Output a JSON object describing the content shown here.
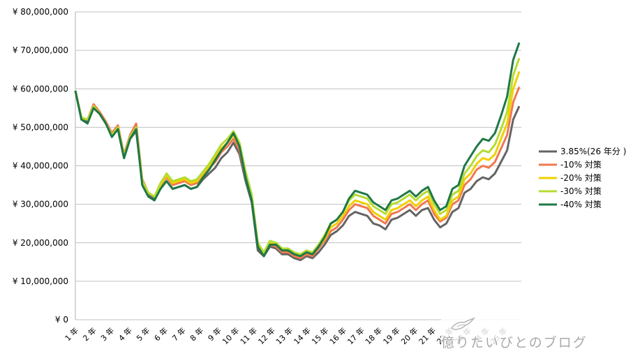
{
  "chart_data": {
    "type": "line",
    "title": "",
    "xlabel": "",
    "ylabel": "",
    "ylim": [
      0,
      80000000
    ],
    "y_ticks": [
      "¥ 0",
      "¥ 10,000,000",
      "¥ 20,000,000",
      "¥ 30,000,000",
      "¥ 40,000,000",
      "¥ 50,000,000",
      "¥ 60,000,000",
      "¥ 70,000,000",
      "¥ 80,000,000"
    ],
    "x_ticks": [
      "1 年",
      "2 年",
      "3 年",
      "4 年",
      "5 年",
      "6 年",
      "7 年",
      "8 年",
      "9 年",
      "10 年",
      "11 年",
      "12 年",
      "13 年",
      "14 年",
      "15 年",
      "16 年",
      "17 年",
      "18 年",
      "19 年",
      "20 年",
      "21 年",
      "22 年",
      "23 年",
      "24 年",
      "25 年"
    ],
    "grid": true,
    "legend_position": "right",
    "series": [
      {
        "name": "3.85%(26 年分 )",
        "color": "#646464",
        "values": [
          59.5,
          52,
          51.5,
          55,
          53.5,
          51,
          48,
          49.5,
          42,
          47,
          49,
          36,
          32.5,
          31.5,
          34.5,
          36,
          34,
          34.5,
          35,
          34,
          34.5,
          36.5,
          38,
          39.5,
          42,
          43.5,
          46,
          43,
          36,
          30.5,
          18,
          16.5,
          19,
          18.5,
          17,
          17,
          16,
          15.5,
          16.5,
          16,
          17.5,
          19.5,
          22,
          23,
          24.5,
          27,
          28,
          27.5,
          27,
          25,
          24.5,
          23.5,
          26,
          26.5,
          27.5,
          28.5,
          27,
          28.5,
          29,
          26,
          24,
          25,
          28,
          29,
          33,
          34,
          36,
          37,
          36.5,
          38,
          41,
          44,
          52,
          55.5
        ]
      },
      {
        "name": "-10% 対策",
        "color": "#f07850",
        "values": [
          59.5,
          52.5,
          52,
          56,
          54,
          51.5,
          48.5,
          50.5,
          43,
          48,
          51,
          36.5,
          33,
          32,
          35,
          37,
          35,
          35.5,
          36,
          35,
          35.5,
          37.5,
          39.5,
          41,
          43.5,
          45,
          47,
          44,
          37,
          31.5,
          19,
          17,
          19.5,
          19,
          17.5,
          17.5,
          16.5,
          16,
          17,
          16.5,
          18.5,
          20.5,
          23,
          24,
          26,
          28.5,
          30,
          29.5,
          29,
          27,
          26,
          25,
          27.5,
          28,
          29,
          30,
          28.5,
          30,
          31,
          27.5,
          25.5,
          26.5,
          30,
          31,
          35,
          36.5,
          39,
          40,
          39.5,
          41,
          44.5,
          48,
          56.5,
          60.5
        ]
      },
      {
        "name": "-20% 対策",
        "color": "#f0d000",
        "values": [
          59.5,
          52.5,
          52,
          55.5,
          53.5,
          51,
          48,
          50,
          42.5,
          47.5,
          50,
          36,
          33,
          32,
          35,
          37.5,
          35.5,
          36,
          36.5,
          35.5,
          36,
          38,
          40,
          42,
          44.5,
          46,
          48,
          45,
          38,
          32,
          19.5,
          17,
          20,
          19.5,
          18,
          18,
          17,
          16.5,
          17.5,
          17,
          19,
          21,
          24,
          25,
          27,
          29.5,
          31,
          30.5,
          30,
          28,
          27,
          26,
          28.5,
          29,
          30,
          31,
          29.5,
          31,
          32,
          28.5,
          26,
          27,
          31,
          32,
          36.5,
          38,
          40.5,
          42,
          41.5,
          43,
          47,
          51,
          60,
          64.5
        ]
      },
      {
        "name": "-30% 対策",
        "color": "#b4dc32",
        "values": [
          59.5,
          52.5,
          52,
          55.5,
          53.5,
          51,
          48,
          50,
          42.5,
          47.5,
          50,
          36,
          33,
          32,
          35.5,
          38,
          36,
          36.5,
          37,
          36,
          36.5,
          38.5,
          40.5,
          43,
          45.5,
          47,
          49,
          46,
          38.5,
          32.5,
          20,
          17.5,
          20.5,
          20,
          18.5,
          18.5,
          17.5,
          17,
          18,
          17.5,
          19.5,
          22,
          25,
          26,
          28,
          31,
          32.5,
          32,
          31.5,
          29.5,
          28.5,
          27.5,
          30,
          30.5,
          31.5,
          32.5,
          31,
          32.5,
          33.5,
          30,
          27.5,
          28.5,
          32.5,
          33.5,
          38,
          40,
          42.5,
          44,
          43.5,
          45.5,
          49.5,
          54,
          63.5,
          68
        ]
      },
      {
        "name": "-40% 対策",
        "color": "#1e7846",
        "values": [
          59.5,
          52,
          51,
          55,
          53.5,
          51,
          47.5,
          49.5,
          42,
          47,
          49.5,
          35,
          32,
          31,
          34,
          36,
          34,
          34.5,
          35,
          34,
          34.5,
          37,
          39,
          41.5,
          44,
          46,
          48.5,
          45,
          37,
          31,
          19,
          16.5,
          19.5,
          19.5,
          18,
          18,
          17,
          16.5,
          17.5,
          17,
          19,
          21.5,
          25,
          26,
          28,
          31.5,
          33.5,
          33,
          32.5,
          30.5,
          29.5,
          28.5,
          31,
          31.5,
          32.5,
          33.5,
          32,
          33.5,
          34.5,
          31,
          28.5,
          29.5,
          34,
          35,
          40,
          42.5,
          45,
          47,
          46.5,
          48.5,
          53,
          58,
          67.5,
          72
        ]
      }
    ]
  },
  "watermark": {
    "text": "億りたいびとのブログ",
    "logo": "bird-logo"
  }
}
